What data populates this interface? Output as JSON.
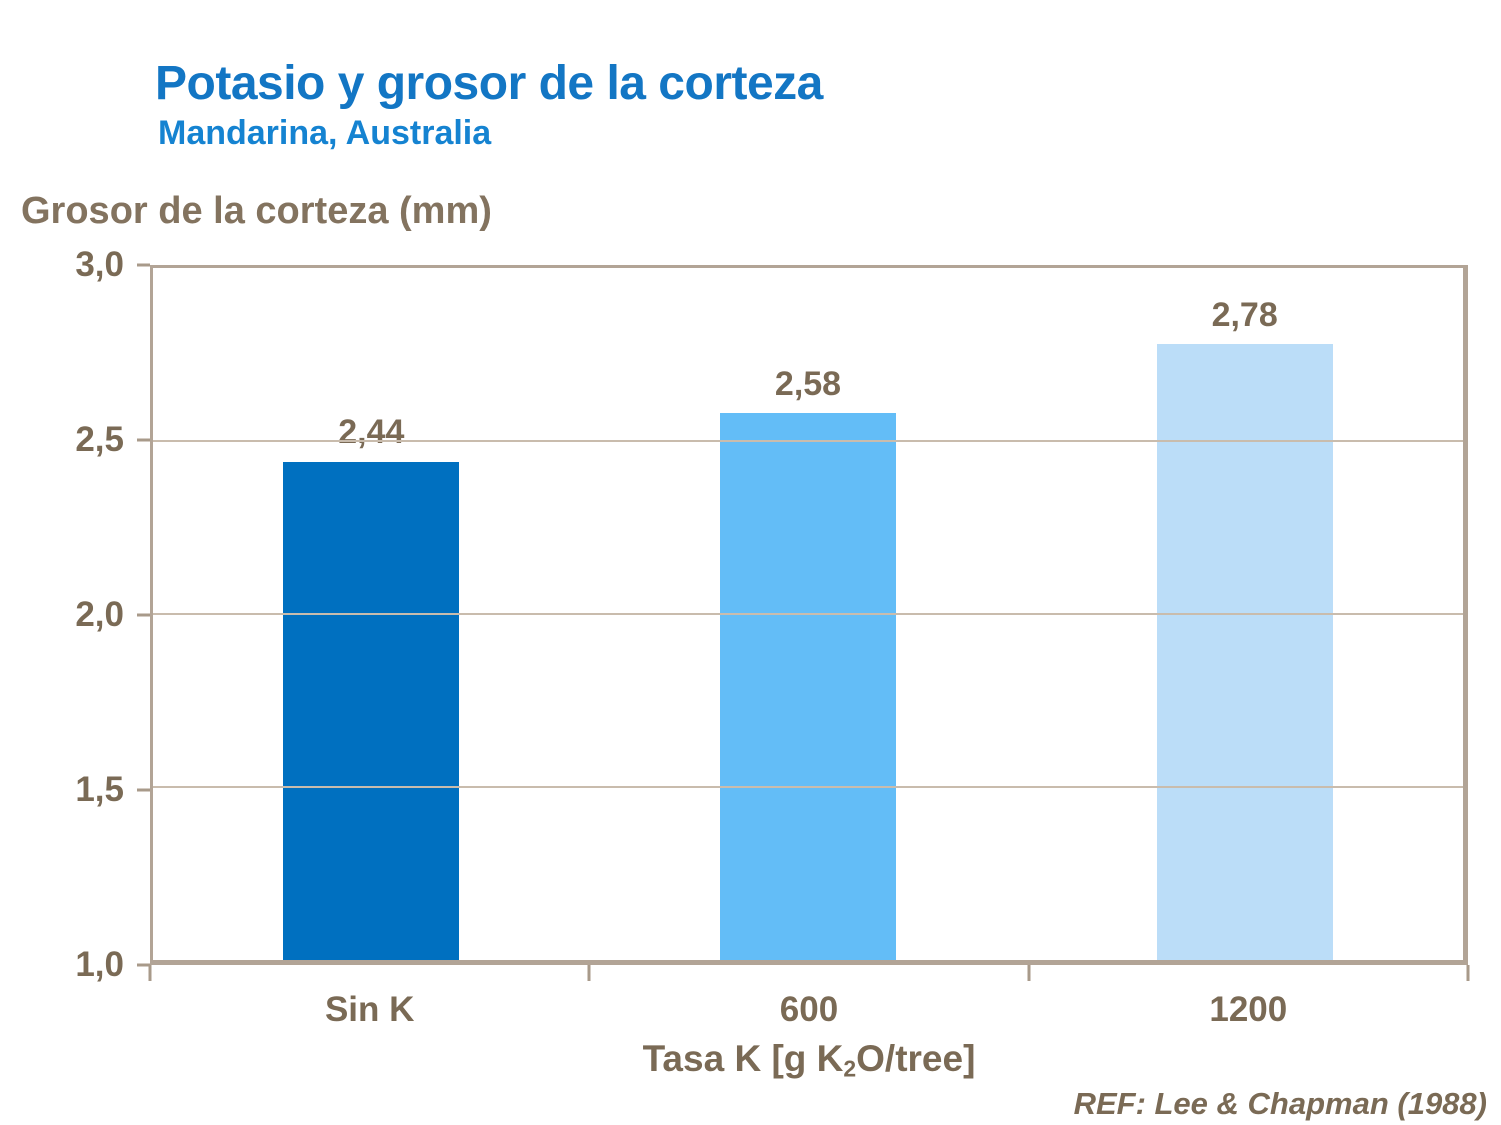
{
  "slide": {
    "title": "Potasio y grosor de la corteza",
    "subtitle": "Mandarina, Australia",
    "reference": "REF: Lee & Chapman (1988)"
  },
  "chart_data": {
    "type": "bar",
    "title": "Potasio y grosor de la corteza",
    "subtitle": "Mandarina, Australia",
    "ylabel": "Grosor de la corteza (mm)",
    "xlabel": "Tasa K [g K2O/tree]",
    "xlabel_parts": {
      "prefix": "Tasa K [g K",
      "subscript": "2",
      "suffix": "O/tree]"
    },
    "categories": [
      "Sin K",
      "600",
      "1200"
    ],
    "values": [
      2.44,
      2.58,
      2.78
    ],
    "value_labels": [
      "2,44",
      "2,58",
      "2,78"
    ],
    "ylim": [
      1.0,
      3.0
    ],
    "ytick_labels": [
      "3,0",
      "2,5",
      "2,0",
      "1,5",
      "1,0"
    ],
    "grid": true,
    "legend": false,
    "bar_colors": [
      "#0070C0",
      "#63BDF7",
      "#BBDDF8"
    ],
    "reference": "REF: Lee & Chapman (1988)"
  },
  "colors": {
    "title_blue": "#1376C4",
    "subtitle_blue": "#1583D1",
    "text_brown": "#7A6A55",
    "ylabel_brown": "#83735F",
    "axis_tan": "#B2A496",
    "gridline_tan": "#C9BCAD",
    "tickmark_tan": "#A89A8A"
  }
}
